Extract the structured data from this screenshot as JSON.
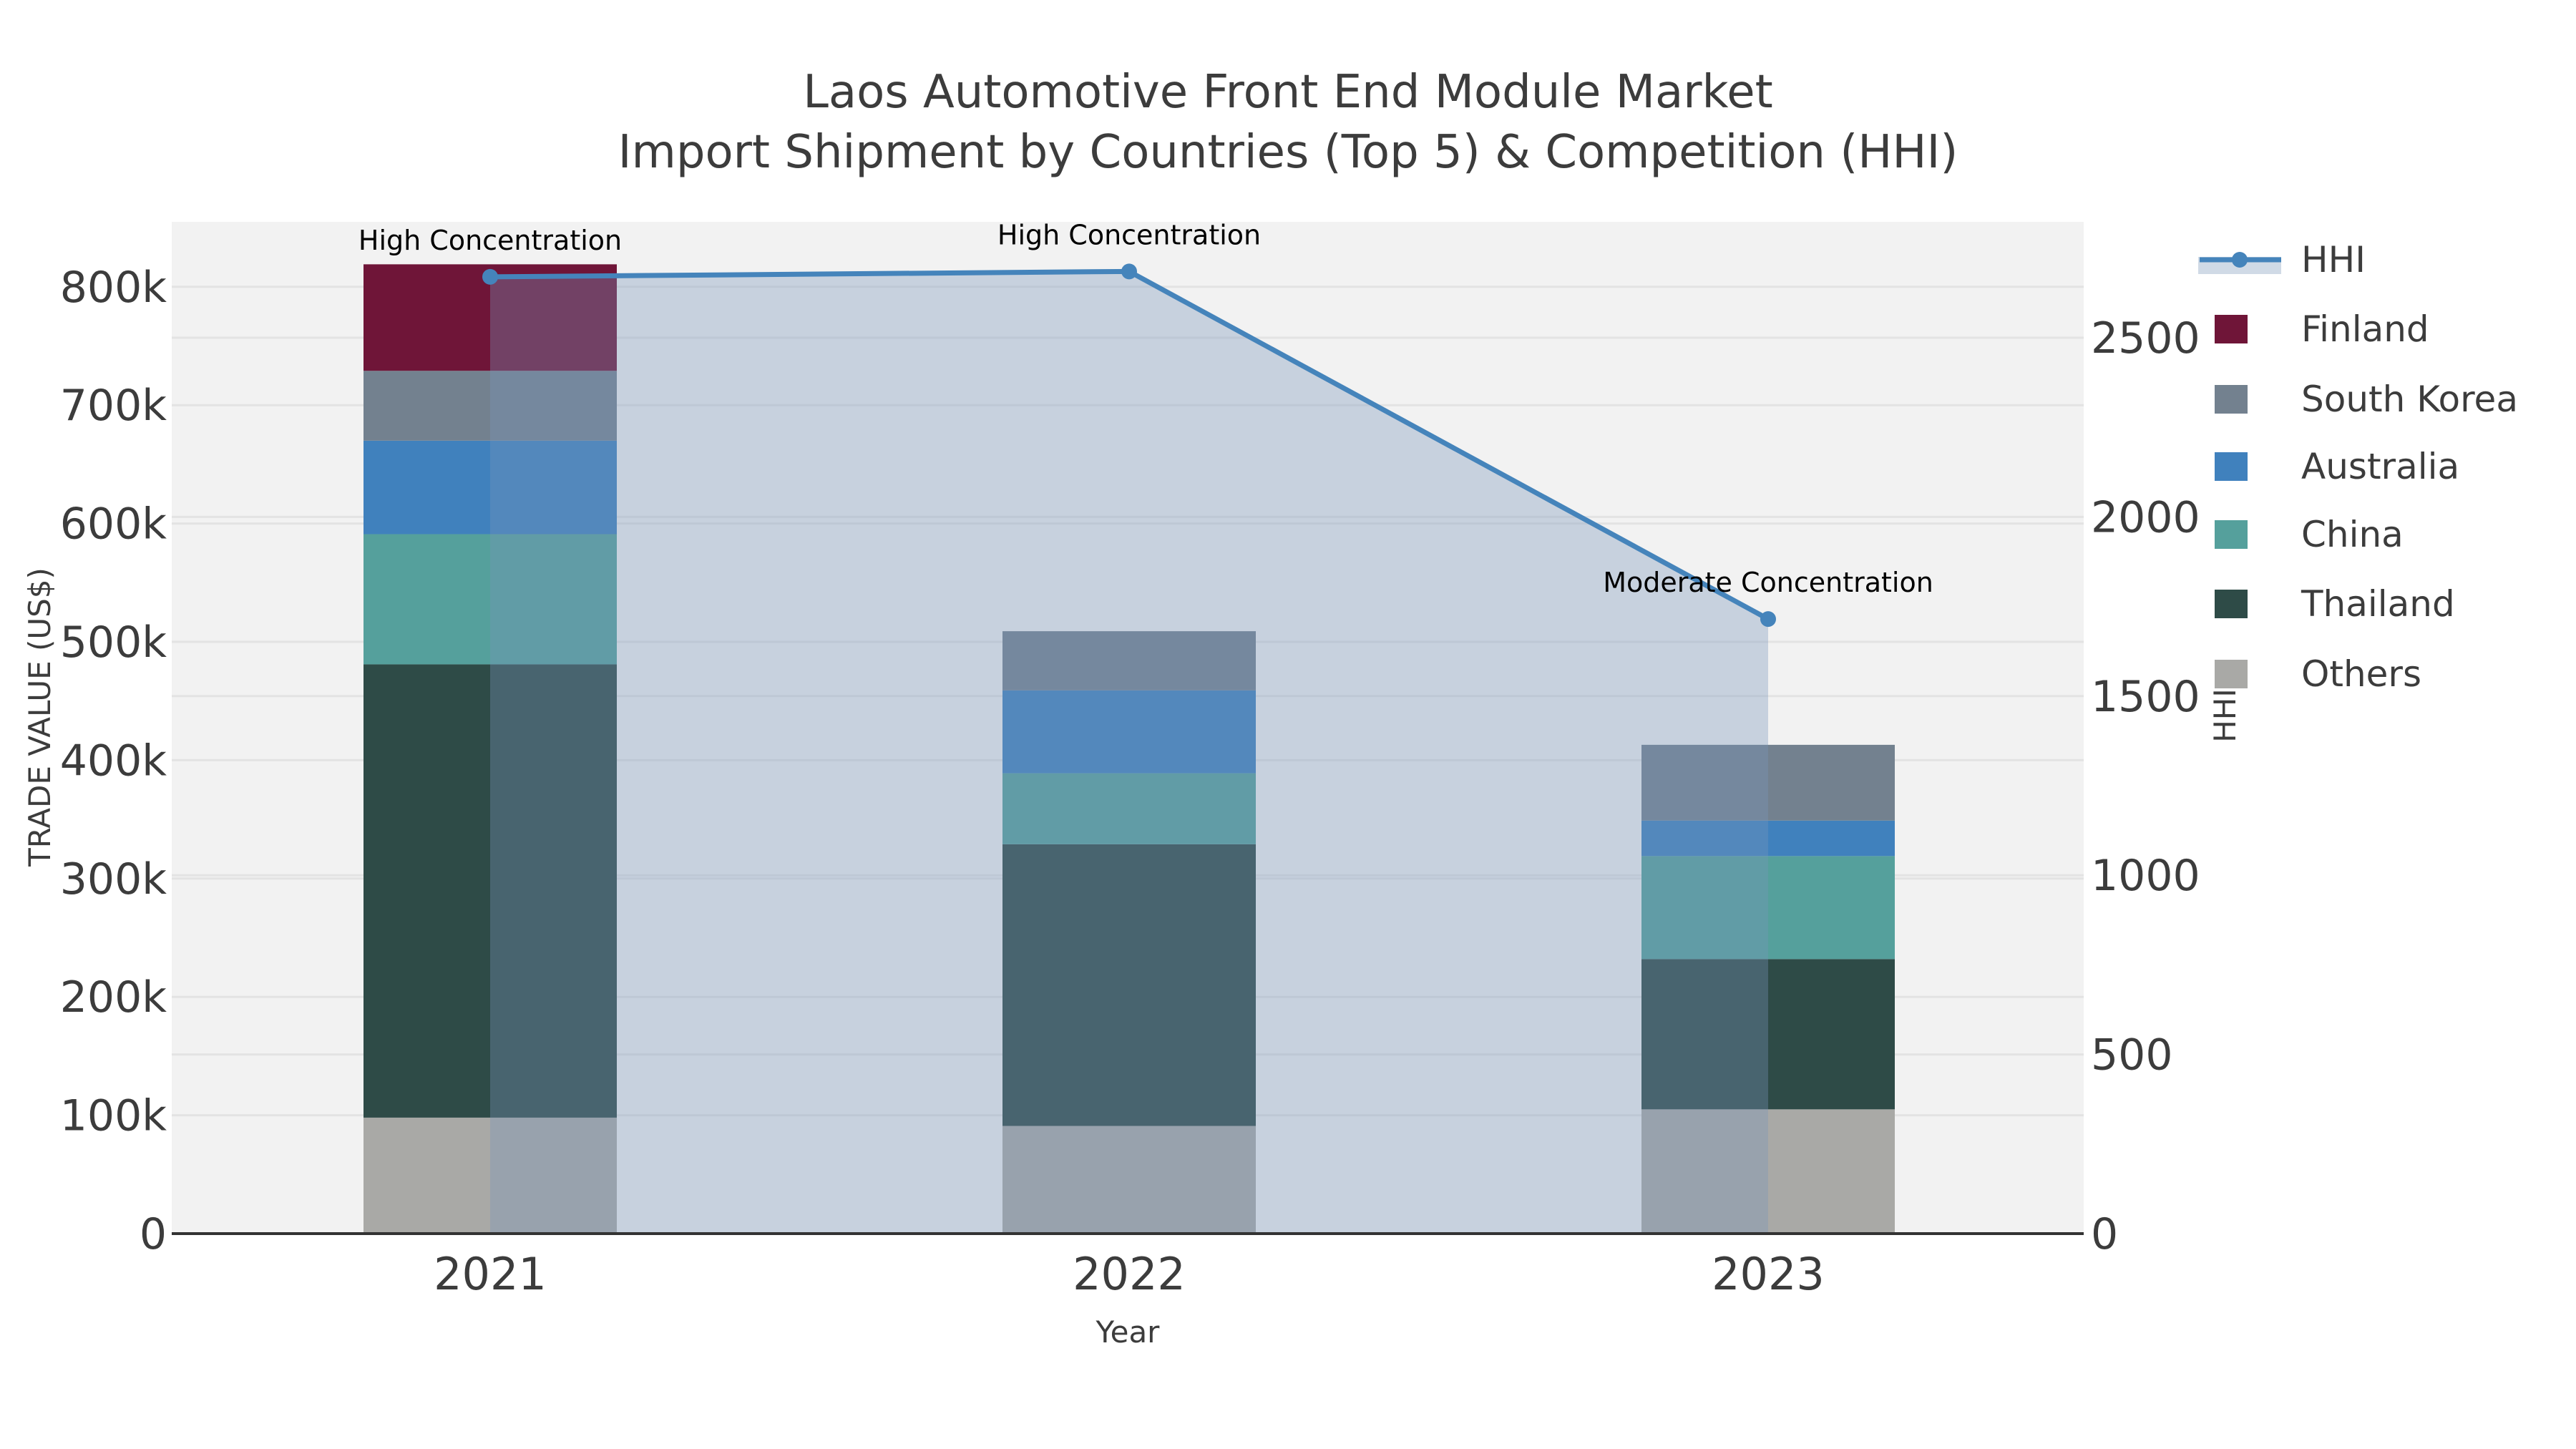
{
  "title": {
    "line1": "Laos Automotive Front End Module Market",
    "line2": "Import Shipment by Countries (Top 5) & Competition (HHI)"
  },
  "chart_data": {
    "type": "bar",
    "subtype": "stacked-bars-with-line-overlay",
    "categories": [
      "2021",
      "2022",
      "2023"
    ],
    "series": [
      {
        "name": "Others",
        "color": "#A9A9A6",
        "values": [
          98000,
          91000,
          105000
        ]
      },
      {
        "name": "Thailand",
        "color": "#2E4B47",
        "values": [
          383000,
          238000,
          127000
        ]
      },
      {
        "name": "China",
        "color": "#55A09C",
        "values": [
          110000,
          60000,
          87000
        ]
      },
      {
        "name": "Australia",
        "color": "#4081BD",
        "values": [
          79000,
          70000,
          30000
        ]
      },
      {
        "name": "South Korea",
        "color": "#73818F",
        "values": [
          59000,
          50000,
          64000
        ]
      },
      {
        "name": "Finland",
        "color": "#6F1538",
        "values": [
          90000,
          0,
          0
        ]
      }
    ],
    "line_series": {
      "name": "HHI",
      "color": "#4584BB",
      "area_fill_color": "rgba(120,150,185,0.35)",
      "values": [
        2670,
        2685,
        1715
      ]
    },
    "annotations": [
      {
        "category": "2021",
        "text": "High Concentration"
      },
      {
        "category": "2022",
        "text": "High Concentration"
      },
      {
        "category": "2023",
        "text": "Moderate Concentration"
      }
    ],
    "x_axis": {
      "title": "Year"
    },
    "left_axis": {
      "title": "TRADE VALUE (US$)",
      "ticks": [
        {
          "label": "0",
          "value": 0
        },
        {
          "label": "100k",
          "value": 100000
        },
        {
          "label": "200k",
          "value": 200000
        },
        {
          "label": "300k",
          "value": 300000
        },
        {
          "label": "400k",
          "value": 400000
        },
        {
          "label": "500k",
          "value": 500000
        },
        {
          "label": "600k",
          "value": 600000
        },
        {
          "label": "700k",
          "value": 700000
        },
        {
          "label": "800k",
          "value": 800000
        }
      ]
    },
    "right_axis": {
      "title": "HHI",
      "ticks": [
        {
          "label": "0",
          "value": 0
        },
        {
          "label": "500",
          "value": 500
        },
        {
          "label": "1000",
          "value": 1000
        },
        {
          "label": "1500",
          "value": 1500
        },
        {
          "label": "2000",
          "value": 2000
        },
        {
          "label": "2500",
          "value": 2500
        }
      ]
    },
    "legend": {
      "items": [
        {
          "label": "HHI",
          "type": "line",
          "color": "#4584BB",
          "band_color": "#D0DAE6"
        },
        {
          "label": "Finland",
          "type": "patch",
          "color": "#6F1538"
        },
        {
          "label": "South Korea",
          "type": "patch",
          "color": "#73818F"
        },
        {
          "label": "Australia",
          "type": "patch",
          "color": "#4081BD"
        },
        {
          "label": "China",
          "type": "patch",
          "color": "#55A09C"
        },
        {
          "label": "Thailand",
          "type": "patch",
          "color": "#2E4B47"
        },
        {
          "label": "Others",
          "type": "patch",
          "color": "#A9A9A6"
        }
      ]
    },
    "layout_hints": {
      "plot_background": "#F2F2F2",
      "gridline_color": "#E3E3E3",
      "left_ylim": [
        0,
        855000
      ],
      "right_ylim": [
        0,
        2820
      ],
      "grid": "both-axes-horizontal",
      "legend_position": "right-outside"
    }
  }
}
